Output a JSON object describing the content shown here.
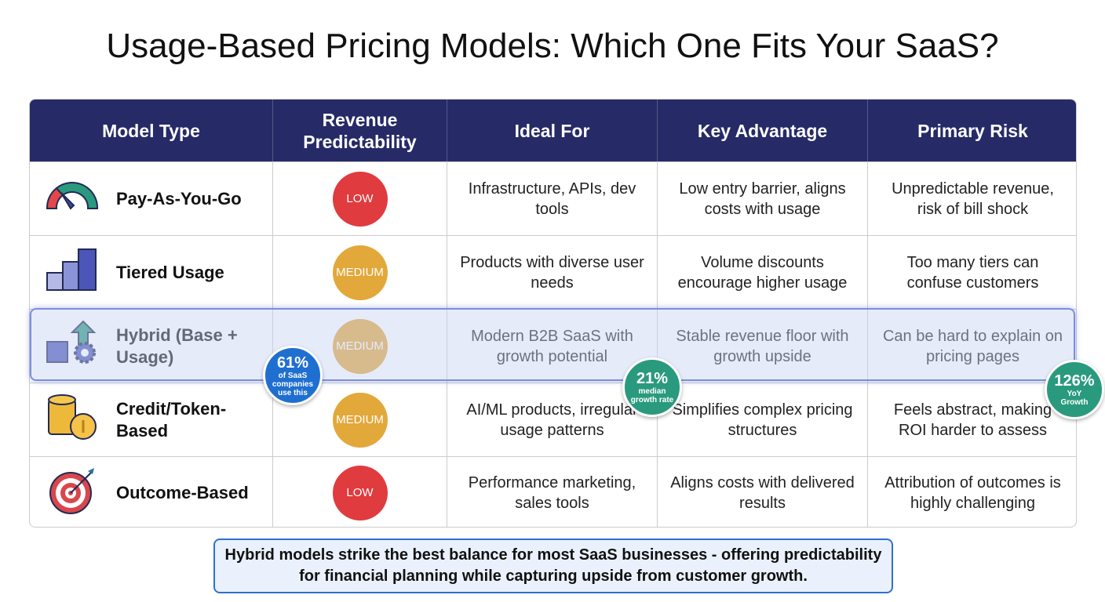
{
  "title": "Usage-Based Pricing Models: Which One Fits Your SaaS?",
  "headers": [
    "Model Type",
    "Revenue Predictability",
    "Ideal For",
    "Key Advantage",
    "Primary Risk"
  ],
  "colors": {
    "header": "#262a66",
    "low": "#e03b3f",
    "medium": "#e3a83a",
    "blue_badge": "#1f6fd1",
    "green_badge": "#2a9a7e",
    "highlight": "#7b8ee0"
  },
  "rows": [
    {
      "icon": "speedometer-icon",
      "model": "Pay-As-You-Go",
      "predictability": "LOW",
      "ideal": "Infrastructure, APIs, dev tools",
      "advantage": "Low entry barrier, aligns costs with usage",
      "risk": "Unpredictable revenue, risk of bill shock"
    },
    {
      "icon": "bar-chart-icon",
      "model": "Tiered Usage",
      "predictability": "MEDIUM",
      "ideal": "Products with diverse user needs",
      "advantage": "Volume discounts encourage higher usage",
      "risk": "Too many tiers can confuse customers"
    },
    {
      "icon": "base-gear-arrow-icon",
      "model": "Hybrid (Base + Usage)",
      "predictability": "MEDIUM",
      "ideal": "Modern B2B SaaS with growth potential",
      "advantage": "Stable revenue floor with growth upside",
      "risk": "Can be hard to explain on pricing pages",
      "highlighted": true
    },
    {
      "icon": "coins-icon",
      "model": "Credit/Token-Based",
      "predictability": "MEDIUM",
      "ideal": "AI/ML products, irregular usage patterns",
      "advantage": "Simplifies complex pricing structures",
      "risk": "Feels abstract, making ROI harder to assess"
    },
    {
      "icon": "target-icon",
      "model": "Outcome-Based",
      "predictability": "LOW",
      "ideal": "Performance marketing, sales tools",
      "advantage": "Aligns costs with delivered results",
      "risk": "Attribution of outcomes is highly challenging"
    }
  ],
  "stats": [
    {
      "value": "61%",
      "label": "of SaaS companies use this"
    },
    {
      "value": "21%",
      "label": "median growth rate"
    },
    {
      "value": "126%",
      "label": "YoY Growth"
    }
  ],
  "footer": "Hybrid models strike the best balance for most SaaS businesses - offering predictability for financial planning while capturing upside from customer growth."
}
